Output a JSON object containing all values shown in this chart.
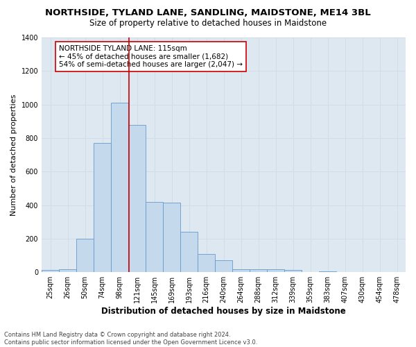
{
  "title1": "NORTHSIDE, TYLAND LANE, SANDLING, MAIDSTONE, ME14 3BL",
  "title2": "Size of property relative to detached houses in Maidstone",
  "xlabel": "Distribution of detached houses by size in Maidstone",
  "ylabel": "Number of detached properties",
  "footnote": "Contains HM Land Registry data © Crown copyright and database right 2024.\nContains public sector information licensed under the Open Government Licence v3.0.",
  "categories": [
    "25sqm",
    "26sqm",
    "50sqm",
    "74sqm",
    "98sqm",
    "121sqm",
    "145sqm",
    "169sqm",
    "193sqm",
    "216sqm",
    "240sqm",
    "264sqm",
    "288sqm",
    "312sqm",
    "339sqm",
    "359sqm",
    "383sqm",
    "407sqm",
    "430sqm",
    "454sqm",
    "478sqm"
  ],
  "bar_values": [
    15,
    20,
    200,
    770,
    1010,
    880,
    420,
    415,
    240,
    110,
    70,
    20,
    20,
    20,
    15,
    0,
    5,
    0,
    0,
    0,
    0
  ],
  "bar_color": "#c5d9ed",
  "bar_edge_color": "#6699cc",
  "grid_color": "#d0dde8",
  "bg_color": "#dde8f0",
  "vline_x_index": 4.55,
  "vline_color": "#cc0000",
  "annotation_text": "NORTHSIDE TYLAND LANE: 115sqm\n← 45% of detached houses are smaller (1,682)\n54% of semi-detached houses are larger (2,047) →",
  "annotation_box_color": "white",
  "annotation_box_edge": "#cc0000",
  "ylim": [
    0,
    1400
  ],
  "yticks": [
    0,
    200,
    400,
    600,
    800,
    1000,
    1200,
    1400
  ],
  "title1_fontsize": 9.5,
  "title2_fontsize": 8.5,
  "xlabel_fontsize": 8.5,
  "ylabel_fontsize": 8,
  "annot_fontsize": 7.5,
  "tick_fontsize": 7
}
